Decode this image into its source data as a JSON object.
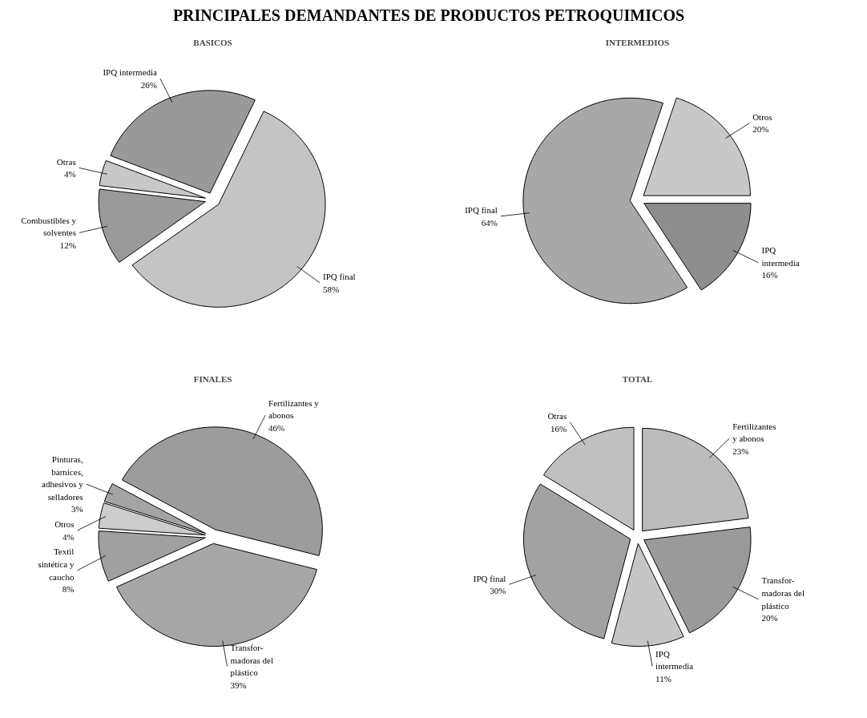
{
  "chart_data": [
    {
      "type": "pie",
      "title": "PRINCIPALES DEMANDANTES DE PRODUCTOS PETROQUIMICOS",
      "subtitle": "BASICOS",
      "categories": [
        "IPQ final",
        "Combustibles y\nsolventes",
        "Otras",
        "IPQ intermedia"
      ],
      "values": [
        58,
        12,
        4,
        26
      ],
      "value_labels": [
        "58%",
        "12%",
        "4%",
        "26%"
      ],
      "colors": [
        "#c4c4c4",
        "#9a9a9a",
        "#c8c8c8",
        "#999999"
      ]
    },
    {
      "type": "pie",
      "subtitle": "INTERMEDIOS",
      "categories": [
        "Otros",
        "IPQ\nintermedia",
        "IPQ final"
      ],
      "values": [
        20,
        16,
        64
      ],
      "value_labels": [
        "20%",
        "16%",
        "64%"
      ],
      "colors": [
        "#c8c8c8",
        "#8e8e8e",
        "#a8a8a8"
      ]
    },
    {
      "type": "pie",
      "subtitle": "FINALES",
      "categories": [
        "Fertilizantes y\nabonos",
        "Transfor-\nmadoras del\nplástico",
        "Textil\nsintética y\ncaucho",
        "Otros",
        "Pinturas,\nbarnices,\nadhesivos y\nselladores"
      ],
      "values": [
        46,
        39,
        8,
        4,
        3
      ],
      "value_labels": [
        "46%",
        "39%",
        "8%",
        "4%",
        "3%"
      ],
      "colors": [
        "#9c9c9c",
        "#a6a6a6",
        "#a0a0a0",
        "#cccccc",
        "#a4a4a4"
      ]
    },
    {
      "type": "pie",
      "subtitle": "TOTAL",
      "categories": [
        "Fertilizantes\ny abonos",
        "Transfor-\nmadoras del\nplástico",
        "IPQ\nintermedia",
        "IPQ final",
        "Otras"
      ],
      "values": [
        23,
        20,
        11,
        30,
        16
      ],
      "value_labels": [
        "23%",
        "20%",
        "11%",
        "30%",
        "16%"
      ],
      "colors": [
        "#bcbcbc",
        "#9a9a9a",
        "#c6c6c6",
        "#a2a2a2",
        "#c0c0c0"
      ]
    }
  ]
}
